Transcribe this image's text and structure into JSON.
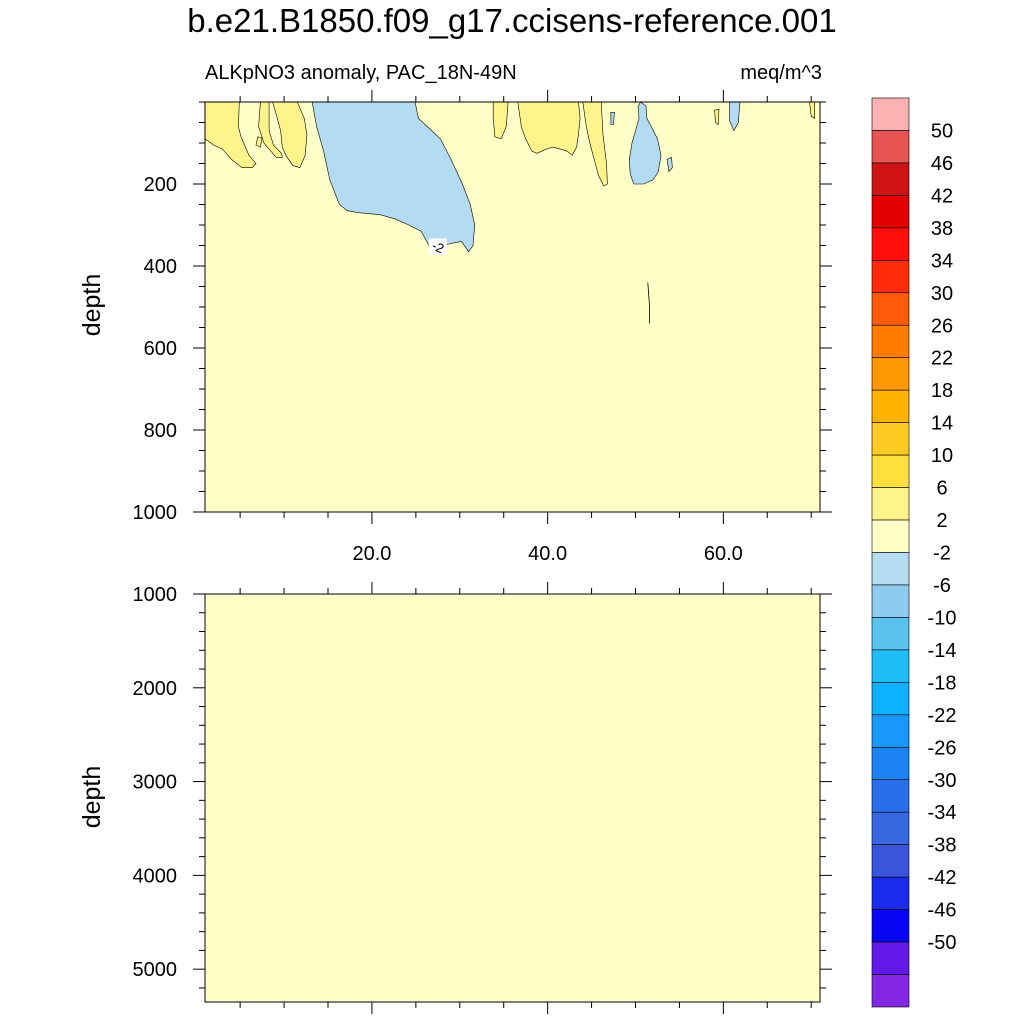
{
  "chart_data": {
    "type": "contour",
    "title": "b.e21.B1850.f09_g17.ccisens-reference.001",
    "subtitle_left": "ALKpNO3 anomaly, PAC_18N-49N",
    "subtitle_right": "meq/m^3",
    "ylabel": "depth",
    "xlim": [
      1,
      71
    ],
    "x_ticks": [
      20,
      40,
      60
    ],
    "x_tick_labels": [
      "20.0",
      "40.0",
      "60.0"
    ],
    "panels": [
      {
        "name": "upper",
        "ylim": [
          0,
          1000
        ],
        "y_ticks": [
          200,
          400,
          600,
          800,
          1000
        ],
        "y_tick_labels": [
          "200",
          "400",
          "600",
          "800",
          "1000"
        ],
        "background_level": "-2 to 2",
        "contour_label": "-2",
        "regions": [
          {
            "level": "-6 to -2",
            "color": "#b3dbf2",
            "points": [
              [
                13.2,
                0
              ],
              [
                24.9,
                0
              ],
              [
                25.3,
                40
              ],
              [
                26.3,
                60
              ],
              [
                27.8,
                90
              ],
              [
                29.0,
                140
              ],
              [
                30.3,
                200
              ],
              [
                31.2,
                250
              ],
              [
                31.7,
                300
              ],
              [
                31.5,
                350
              ],
              [
                31.0,
                365
              ],
              [
                30.2,
                340
              ],
              [
                29.0,
                345
              ],
              [
                27.6,
                355
              ],
              [
                26.5,
                350
              ],
              [
                25.6,
                315
              ],
              [
                24.2,
                300
              ],
              [
                22.6,
                285
              ],
              [
                21.0,
                275
              ],
              [
                18.5,
                270
              ],
              [
                17.2,
                265
              ],
              [
                16.3,
                250
              ],
              [
                15.2,
                190
              ],
              [
                14.5,
                120
              ],
              [
                13.7,
                60
              ]
            ]
          },
          {
            "level": "-6 to -2",
            "color": "#b3dbf2",
            "points": [
              [
                50.6,
                0
              ],
              [
                51.2,
                10
              ],
              [
                51.3,
                40
              ],
              [
                51.8,
                60
              ],
              [
                52.5,
                90
              ],
              [
                52.9,
                130
              ],
              [
                52.6,
                170
              ],
              [
                52.0,
                190
              ],
              [
                50.9,
                200
              ],
              [
                49.8,
                200
              ],
              [
                49.4,
                175
              ],
              [
                49.3,
                140
              ],
              [
                49.6,
                100
              ],
              [
                50.0,
                70
              ],
              [
                50.4,
                40
              ],
              [
                50.3,
                10
              ]
            ]
          },
          {
            "level": "-6 to -2",
            "color": "#b3dbf2",
            "points": [
              [
                60.7,
                0
              ],
              [
                61.9,
                0
              ],
              [
                61.7,
                50
              ],
              [
                61.2,
                70
              ],
              [
                60.7,
                45
              ]
            ]
          },
          {
            "level": "-6 to -2",
            "color": "#b3dbf2",
            "points": [
              [
                47.2,
                25
              ],
              [
                47.6,
                25
              ],
              [
                47.5,
                55
              ],
              [
                47.2,
                55
              ]
            ]
          },
          {
            "level": "-6 to -2",
            "color": "#b3dbf2",
            "points": [
              [
                53.6,
                140
              ],
              [
                54.1,
                135
              ],
              [
                54.2,
                160
              ],
              [
                53.8,
                170
              ]
            ]
          },
          {
            "level": "2 to 6",
            "color": "#fff38b",
            "points": [
              [
                1,
                0
              ],
              [
                4.9,
                0
              ],
              [
                4.8,
                60
              ],
              [
                5.1,
                85
              ],
              [
                6.0,
                130
              ],
              [
                6.8,
                150
              ],
              [
                6.4,
                160
              ],
              [
                5.2,
                160
              ],
              [
                4.0,
                140
              ],
              [
                3.0,
                115
              ],
              [
                2.0,
                105
              ],
              [
                1,
                90
              ]
            ]
          },
          {
            "level": "2 to 6",
            "color": "#fff38b",
            "points": [
              [
                7.3,
                0
              ],
              [
                8.3,
                0
              ],
              [
                8.3,
                70
              ],
              [
                8.8,
                105
              ],
              [
                9.7,
                125
              ],
              [
                9.8,
                135
              ],
              [
                9.1,
                135
              ],
              [
                8.5,
                120
              ],
              [
                7.7,
                100
              ],
              [
                7.1,
                60
              ]
            ]
          },
          {
            "level": "2 to 6",
            "color": "#fff38b",
            "points": [
              [
                7.0,
                85
              ],
              [
                7.5,
                88
              ],
              [
                7.3,
                110
              ],
              [
                6.8,
                105
              ]
            ]
          },
          {
            "level": "2 to 6",
            "color": "#fff38b",
            "points": [
              [
                8.7,
                0
              ],
              [
                11.5,
                0
              ],
              [
                12.3,
                40
              ],
              [
                12.6,
                80
              ],
              [
                12.4,
                130
              ],
              [
                11.8,
                160
              ],
              [
                11.0,
                155
              ],
              [
                10.2,
                130
              ],
              [
                9.8,
                110
              ],
              [
                9.6,
                70
              ],
              [
                9.1,
                30
              ]
            ]
          },
          {
            "level": "2 to 6",
            "color": "#fff38b",
            "points": [
              [
                33.8,
                0
              ],
              [
                35.5,
                0
              ],
              [
                35.3,
                60
              ],
              [
                34.7,
                90
              ],
              [
                34.0,
                85
              ],
              [
                33.8,
                40
              ]
            ]
          },
          {
            "level": "2 to 6",
            "color": "#fff38b",
            "points": [
              [
                36.6,
                0
              ],
              [
                41.8,
                0
              ],
              [
                43.5,
                0
              ],
              [
                43.7,
                40
              ],
              [
                43.5,
                80
              ],
              [
                43.3,
                110
              ],
              [
                42.8,
                130
              ],
              [
                42.2,
                120
              ],
              [
                41.5,
                115
              ],
              [
                40.6,
                110
              ],
              [
                39.8,
                115
              ],
              [
                38.8,
                125
              ],
              [
                38.2,
                120
              ],
              [
                37.5,
                90
              ],
              [
                37.0,
                60
              ]
            ]
          },
          {
            "level": "2 to 6",
            "color": "#fff38b",
            "points": [
              [
                44.0,
                0
              ],
              [
                46.1,
                0
              ],
              [
                46.3,
                80
              ],
              [
                46.7,
                150
              ],
              [
                46.8,
                200
              ],
              [
                46.4,
                205
              ],
              [
                45.8,
                180
              ],
              [
                45.3,
                140
              ],
              [
                44.8,
                100
              ],
              [
                44.4,
                60
              ]
            ]
          },
          {
            "level": "2 to 6",
            "color": "#fff38b",
            "points": [
              [
                59.0,
                20
              ],
              [
                59.5,
                18
              ],
              [
                59.4,
                55
              ],
              [
                59.1,
                50
              ]
            ]
          },
          {
            "level": "2 to 6",
            "color": "#fff38b",
            "points": [
              [
                69.8,
                0
              ],
              [
                70.4,
                0
              ],
              [
                70.4,
                40
              ],
              [
                70.0,
                35
              ]
            ]
          }
        ],
        "thin_contours": [
          {
            "points": [
              [
                51.4,
                440
              ],
              [
                51.5,
                470
              ],
              [
                51.6,
                500
              ],
              [
                51.6,
                540
              ]
            ]
          }
        ]
      },
      {
        "name": "lower",
        "ylim": [
          1000,
          5350
        ],
        "y_ticks": [
          1000,
          2000,
          3000,
          4000,
          5000
        ],
        "y_tick_labels": [
          "1000",
          "2000",
          "3000",
          "4000",
          "5000"
        ],
        "background_level": "-2 to 2",
        "regions": [],
        "thin_contours": []
      }
    ],
    "colorbar": {
      "labels": [
        "50",
        "46",
        "42",
        "38",
        "34",
        "30",
        "26",
        "22",
        "18",
        "14",
        "10",
        "6",
        "2",
        "-2",
        "-6",
        "-10",
        "-14",
        "-18",
        "-22",
        "-26",
        "-30",
        "-34",
        "-38",
        "-42",
        "-46",
        "-50"
      ],
      "colors": [
        "#fcb2b2",
        "#e85454",
        "#cf1212",
        "#e40000",
        "#ff0e0e",
        "#ff2b0a",
        "#ff5a07",
        "#ff7c00",
        "#ff9800",
        "#ffb300",
        "#ffcb22",
        "#ffe03c",
        "#fff38b",
        "#ffffc8",
        "#b3dbf2",
        "#8ecbee",
        "#59c2ef",
        "#1fbdf6",
        "#0eb1fb",
        "#1899f9",
        "#1b84f2",
        "#2a6fe9",
        "#3867e2",
        "#3a55db",
        "#1b2bee",
        "#0606f5",
        "#6419ec",
        "#8327e5"
      ],
      "background_color": "#ffffc8"
    }
  }
}
